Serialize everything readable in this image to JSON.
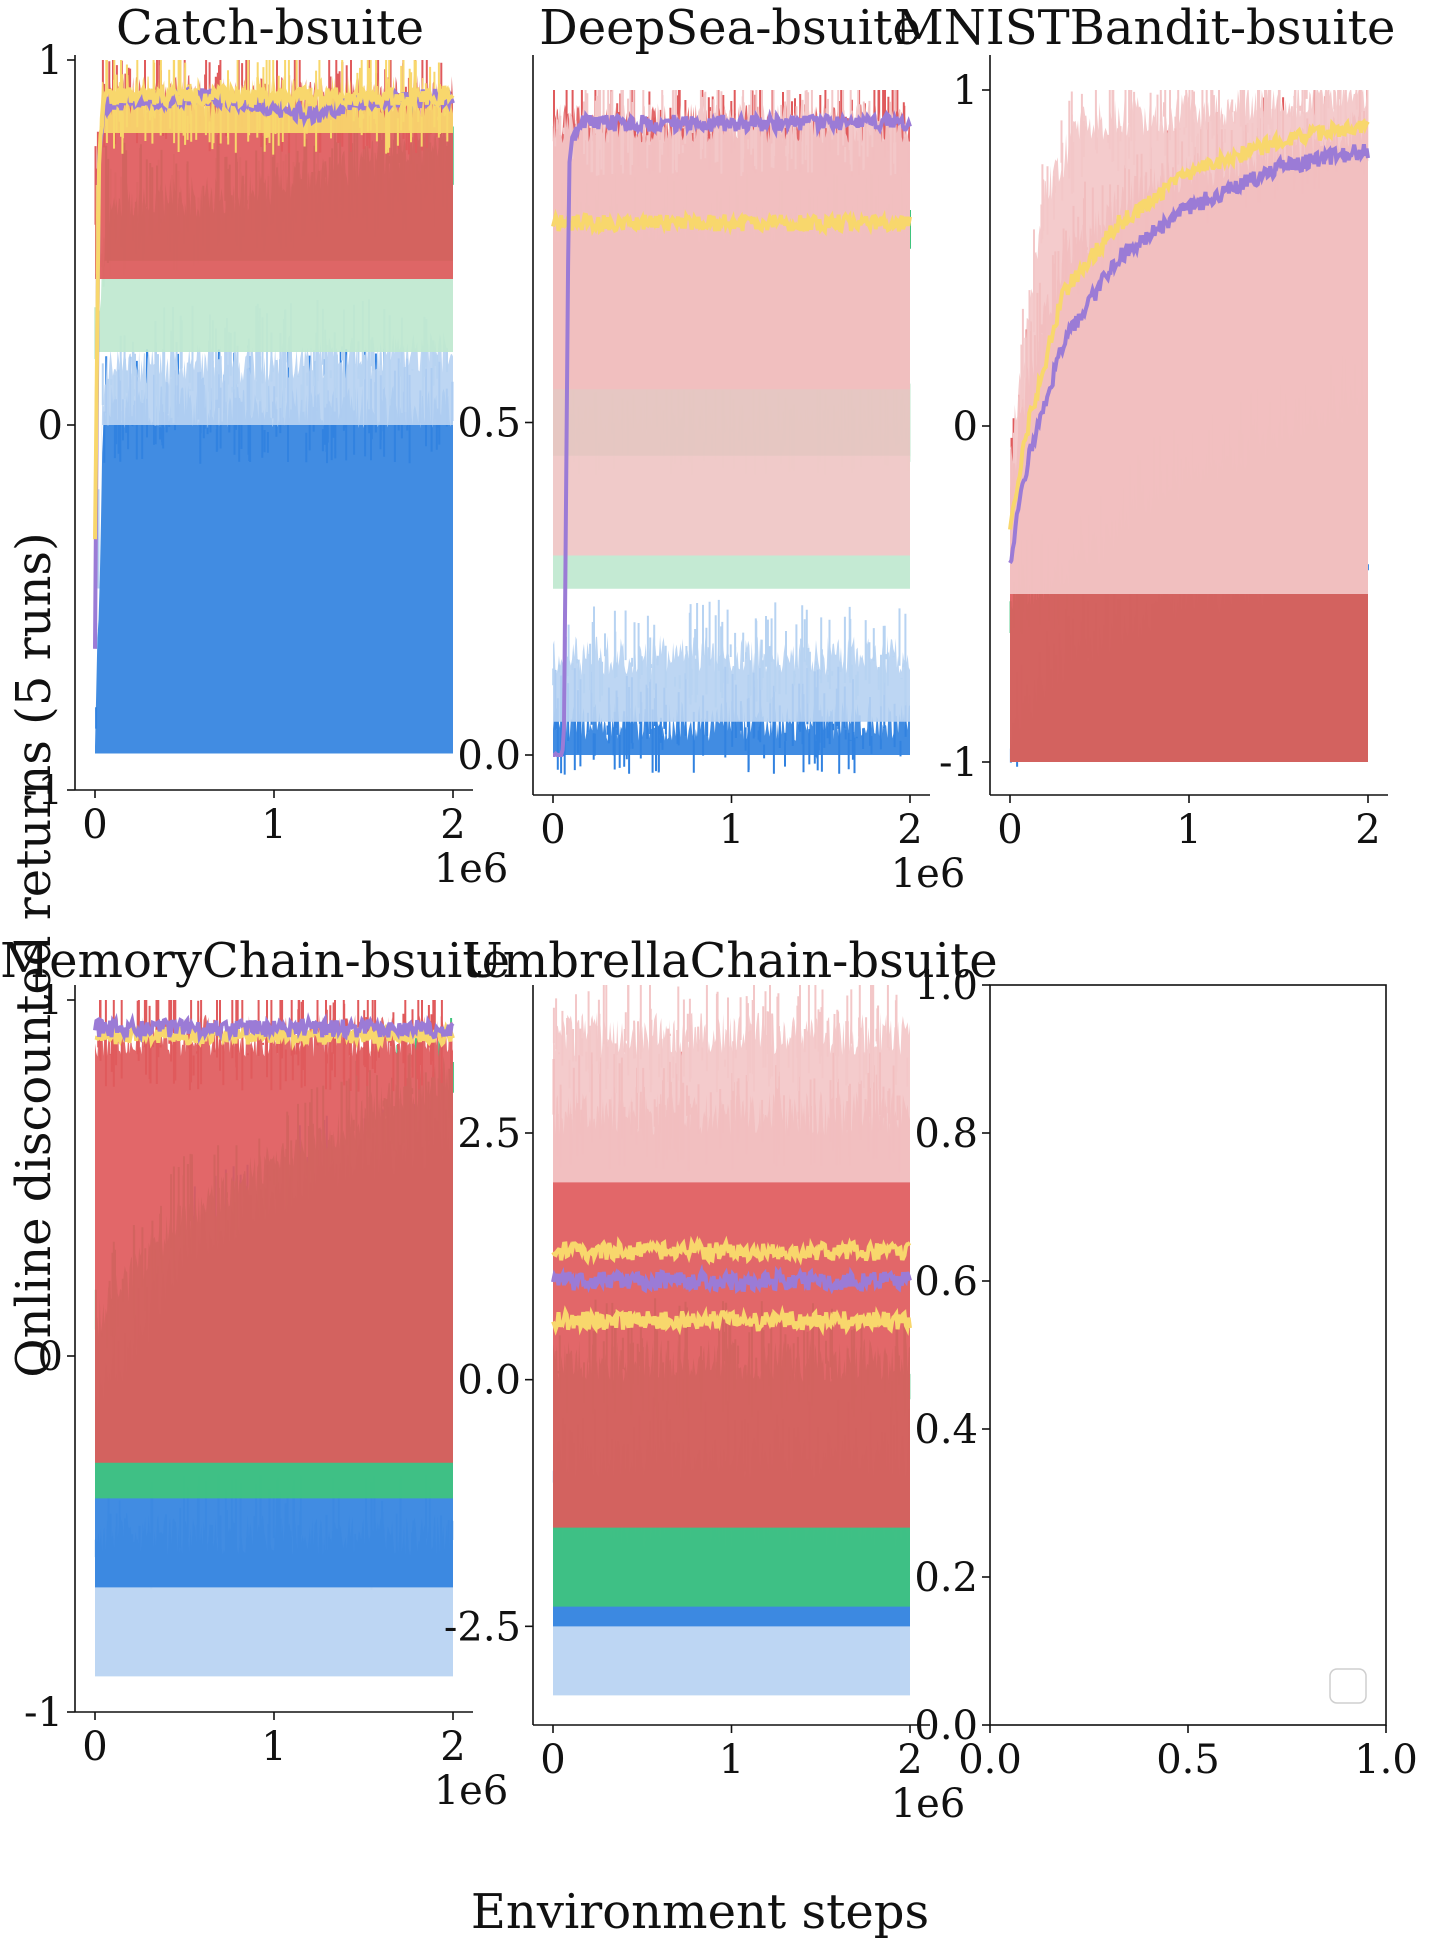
{
  "figure": {
    "ylabel": "Online discounted returns (5 runs)",
    "xlabel": "Environment steps"
  },
  "colors": {
    "blue": "#3182e0",
    "light_blue": "#b7d3f2",
    "green": "#3fc47d",
    "light_green": "#bfe8cf",
    "red": "#e05a5c",
    "light_red": "#f3c7c8",
    "yellow": "#f8d76c",
    "purple": "#9b7bd6",
    "axis": "#111111"
  },
  "chart_data": [
    {
      "type": "line",
      "title": "Catch-bsuite",
      "xlim": [
        0,
        2000000
      ],
      "ylim": [
        -1,
        1
      ],
      "xticks": [
        0,
        1000000,
        2000000
      ],
      "xtick_labels": [
        "0",
        "1",
        "2"
      ],
      "x_offset_label": "1e6",
      "yticks": [
        -1,
        0,
        1
      ],
      "ytick_labels": [
        "-1",
        "0",
        "1"
      ],
      "bands": [
        {
          "color": "blue",
          "low": -0.9,
          "high": [
            [
              0,
              -0.85
            ],
            [
              50000,
              0.05
            ],
            [
              2000000,
              0.05
            ]
          ]
        },
        {
          "color": "light_blue",
          "low": 0.0,
          "high": [
            [
              0,
              -0.6
            ],
            [
              50000,
              0.15
            ],
            [
              2000000,
              0.2
            ]
          ]
        },
        {
          "color": "light_green",
          "low": 0.2,
          "high": [
            [
              0,
              0.2
            ],
            [
              60000,
              0.55
            ],
            [
              2000000,
              0.7
            ]
          ]
        },
        {
          "color": "green",
          "low": 0.45,
          "high": [
            [
              0,
              -0.5
            ],
            [
              60000,
              0.6
            ],
            [
              1000000,
              0.65
            ],
            [
              2000000,
              0.8
            ]
          ]
        },
        {
          "color": "red",
          "low": 0.4,
          "high": [
            [
              0,
              0.6
            ],
            [
              40000,
              0.9
            ],
            [
              2000000,
              0.9
            ]
          ]
        },
        {
          "color": "yellow",
          "low": 0.8,
          "high": [
            [
              0,
              0.4
            ],
            [
              30000,
              0.9
            ],
            [
              2000000,
              0.9
            ]
          ]
        }
      ],
      "series": [
        {
          "color": "purple",
          "points": [
            [
              0,
              -0.6
            ],
            [
              20000,
              0.7
            ],
            [
              50000,
              0.88
            ],
            [
              600000,
              0.9
            ],
            [
              1250000,
              0.85
            ],
            [
              1400000,
              0.88
            ],
            [
              2000000,
              0.9
            ]
          ]
        },
        {
          "color": "yellow",
          "points": [
            [
              0,
              -0.3
            ],
            [
              25000,
              0.8
            ],
            [
              60000,
              0.9
            ],
            [
              2000000,
              0.9
            ]
          ]
        }
      ]
    },
    {
      "type": "line",
      "title": "DeepSea-bsuite",
      "xlim": [
        0,
        2000000
      ],
      "ylim": [
        0,
        1
      ],
      "xticks": [
        0,
        1000000,
        2000000
      ],
      "xtick_labels": [
        "0",
        "1",
        "2"
      ],
      "x_offset_label": "1e6",
      "yticks": [
        0,
        0.5
      ],
      "ytick_labels": [
        "0.0",
        "0.5"
      ],
      "bands": [
        {
          "color": "blue",
          "low": 0.0,
          "high": [
            [
              0,
              0.05
            ],
            [
              2000000,
              0.05
            ]
          ]
        },
        {
          "color": "light_blue",
          "low": 0.05,
          "high": [
            [
              0,
              0.15
            ],
            [
              2000000,
              0.15
            ]
          ]
        },
        {
          "color": "light_green",
          "low": 0.25,
          "high": [
            [
              0,
              0.5
            ],
            [
              2000000,
              0.5
            ]
          ]
        },
        {
          "color": "green",
          "low": 0.45,
          "high": [
            [
              0,
              0.8
            ],
            [
              2000000,
              0.8
            ]
          ]
        },
        {
          "color": "red",
          "low": 0.55,
          "high": [
            [
              0,
              0.95
            ],
            [
              2000000,
              0.95
            ]
          ]
        },
        {
          "color": "light_red",
          "low": 0.3,
          "high": [
            [
              0,
              0.95
            ],
            [
              300000,
              0.95
            ]
          ]
        }
      ],
      "series": [
        {
          "color": "yellow",
          "points": [
            [
              0,
              0.8
            ],
            [
              2000000,
              0.8
            ]
          ]
        },
        {
          "color": "purple",
          "points": [
            [
              0,
              0.0
            ],
            [
              60000,
              0.0
            ],
            [
              90000,
              0.9
            ],
            [
              140000,
              0.95
            ],
            [
              2000000,
              0.95
            ]
          ]
        }
      ]
    },
    {
      "type": "line",
      "title": "MNISTBandit-bsuite",
      "xlim": [
        0,
        2000000
      ],
      "ylim": [
        -1,
        1
      ],
      "xticks": [
        0,
        1000000,
        2000000
      ],
      "xtick_labels": [
        "0",
        "1",
        "2"
      ],
      "x_offset_label": null,
      "yticks": [
        -1,
        0,
        1
      ],
      "ytick_labels": [
        "-1",
        "0",
        "1"
      ],
      "bands": [
        {
          "color": "blue",
          "low": -1.0,
          "high": [
            [
              0,
              -0.9
            ],
            [
              300000,
              -0.7
            ],
            [
              800000,
              -0.55
            ],
            [
              2000000,
              -0.4
            ]
          ]
        },
        {
          "color": "green",
          "low": -1.0,
          "high": [
            [
              0,
              -0.5
            ],
            [
              300000,
              -0.45
            ],
            [
              800000,
              -0.2
            ],
            [
              2000000,
              0.1
            ]
          ]
        },
        {
          "color": "red",
          "low": -1.0,
          "high": [
            [
              0,
              -0.2
            ],
            [
              100000,
              0.15
            ],
            [
              300000,
              0.5
            ],
            [
              700000,
              0.7
            ],
            [
              2000000,
              0.9
            ]
          ]
        },
        {
          "color": "light_red",
          "low": -0.5,
          "high": [
            [
              0,
              -0.1
            ],
            [
              200000,
              0.7
            ],
            [
              400000,
              0.9
            ],
            [
              2000000,
              1.0
            ]
          ]
        }
      ],
      "series": [
        {
          "color": "yellow",
          "points": [
            [
              0,
              -0.3
            ],
            [
              100000,
              0.0
            ],
            [
              300000,
              0.4
            ],
            [
              600000,
              0.6
            ],
            [
              1000000,
              0.75
            ],
            [
              1500000,
              0.85
            ],
            [
              2000000,
              0.9
            ]
          ]
        },
        {
          "color": "purple",
          "points": [
            [
              0,
              -0.4
            ],
            [
              100000,
              -0.1
            ],
            [
              300000,
              0.25
            ],
            [
              600000,
              0.5
            ],
            [
              1000000,
              0.65
            ],
            [
              1500000,
              0.77
            ],
            [
              2000000,
              0.82
            ]
          ]
        }
      ]
    },
    {
      "type": "line",
      "title": "MemoryChain-bsuite",
      "xlim": [
        0,
        2000000
      ],
      "ylim": [
        -1,
        1
      ],
      "xticks": [
        0,
        1000000,
        2000000
      ],
      "xtick_labels": [
        "0",
        "1",
        "2"
      ],
      "x_offset_label": "1e6",
      "yticks": [
        -1,
        0,
        1
      ],
      "ytick_labels": [
        "-1",
        "0",
        "1"
      ],
      "bands": [
        {
          "color": "light_blue",
          "low": -0.9,
          "high": [
            [
              0,
              -0.5
            ],
            [
              2000000,
              -0.5
            ]
          ]
        },
        {
          "color": "blue",
          "low": -0.65,
          "high": [
            [
              0,
              -0.1
            ],
            [
              200000,
              0.0
            ],
            [
              500000,
              0.3
            ],
            [
              1200000,
              0.5
            ],
            [
              2000000,
              0.6
            ]
          ]
        },
        {
          "color": "green",
          "low": -0.4,
          "high": [
            [
              0,
              0.1
            ],
            [
              500000,
              0.4
            ],
            [
              1200000,
              0.6
            ],
            [
              2000000,
              0.8
            ]
          ]
        },
        {
          "color": "red",
          "low": -0.3,
          "high": [
            [
              0,
              0.9
            ],
            [
              2000000,
              0.9
            ]
          ]
        }
      ],
      "series": [
        {
          "color": "yellow",
          "points": [
            [
              0,
              0.9
            ],
            [
              2000000,
              0.9
            ]
          ]
        },
        {
          "color": "purple",
          "points": [
            [
              0,
              0.92
            ],
            [
              2000000,
              0.92
            ]
          ]
        }
      ]
    },
    {
      "type": "line",
      "title": "UmbrellaChain-bsuite",
      "xlim": [
        0,
        2000000
      ],
      "ylim": [
        -3.5,
        4.0
      ],
      "xticks": [
        0,
        1000000,
        2000000
      ],
      "xtick_labels": [
        "0",
        "1",
        "2"
      ],
      "x_offset_label": "1e6",
      "yticks": [
        -2.5,
        0,
        2.5
      ],
      "ytick_labels": [
        "-2.5",
        "0.0",
        "2.5"
      ],
      "bands": [
        {
          "color": "light_blue",
          "low": -3.2,
          "high": [
            [
              0,
              -1.5
            ],
            [
              2000000,
              -1.5
            ]
          ]
        },
        {
          "color": "blue",
          "low": -2.5,
          "high": [
            [
              0,
              -0.8
            ],
            [
              2000000,
              -0.8
            ]
          ]
        },
        {
          "color": "green",
          "low": -2.3,
          "high": [
            [
              0,
              0.2
            ],
            [
              2000000,
              0.2
            ]
          ]
        },
        {
          "color": "red",
          "low": -1.5,
          "high": [
            [
              0,
              2.7
            ],
            [
              2000000,
              2.7
            ]
          ]
        },
        {
          "color": "light_red",
          "low": 2.0,
          "high": [
            [
              0,
              3.5
            ],
            [
              2000000,
              3.5
            ]
          ]
        }
      ],
      "series": [
        {
          "color": "yellow",
          "points": [
            [
              0,
              0.6
            ],
            [
              2000000,
              0.6
            ]
          ]
        },
        {
          "color": "purple",
          "points": [
            [
              0,
              1.0
            ],
            [
              2000000,
              1.0
            ]
          ]
        },
        {
          "color": "yellow",
          "points": [
            [
              0,
              1.3
            ],
            [
              2000000,
              1.3
            ]
          ]
        }
      ]
    },
    {
      "type": "line",
      "title": "",
      "xlim": [
        0.0,
        1.0
      ],
      "ylim": [
        0.0,
        1.0
      ],
      "xticks": [
        0.0,
        0.5,
        1.0
      ],
      "xtick_labels": [
        "0.0",
        "0.5",
        "1.0"
      ],
      "yticks": [
        0.0,
        0.2,
        0.4,
        0.6,
        0.8,
        1.0
      ],
      "ytick_labels": [
        "0.0",
        "0.2",
        "0.4",
        "0.6",
        "0.8",
        "1.0"
      ],
      "empty": true,
      "legend": "bottom-right (empty)"
    }
  ]
}
